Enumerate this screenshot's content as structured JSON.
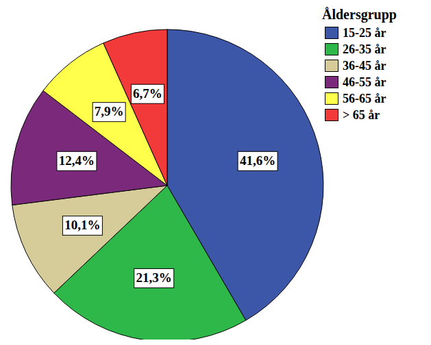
{
  "chart_data": {
    "type": "pie",
    "legend_title": "Åldersgrupp",
    "categories": [
      "15-25 år",
      "26-35 år",
      "36-45 år",
      "46-55 år",
      "56-65 år",
      "> 65 år"
    ],
    "values": [
      41.6,
      21.3,
      10.1,
      12.4,
      7.9,
      6.7
    ],
    "value_labels": [
      "41,6%",
      "21,3%",
      "10,1%",
      "12,4%",
      "7,9%",
      "6,7%"
    ],
    "colors": [
      "#3C56A8",
      "#2EB84A",
      "#D5CC9A",
      "#7B2A7B",
      "#FFFF4C",
      "#F23A3A"
    ],
    "data_labels": true,
    "legend": "upper right"
  }
}
